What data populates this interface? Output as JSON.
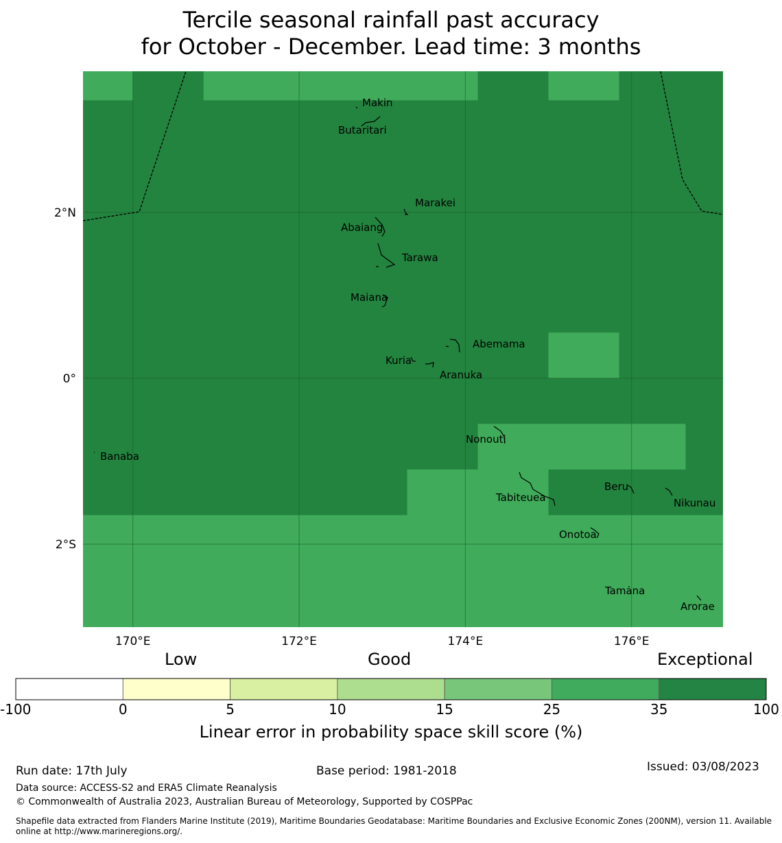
{
  "title_line1": "Tercile seasonal rainfall past accuracy",
  "title_line2": "for October - December. Lead time: 3 months",
  "map": {
    "lon_range": [
      169.4,
      177.1
    ],
    "lat_range": [
      -3.0,
      3.7
    ],
    "x_ticks": [
      {
        "lon": 170,
        "label": "170°E"
      },
      {
        "lon": 172,
        "label": "172°E"
      },
      {
        "lon": 174,
        "label": "174°E"
      },
      {
        "lon": 176,
        "label": "176°E"
      }
    ],
    "y_ticks": [
      {
        "lat": 2,
        "label": "2°N"
      },
      {
        "lat": 0,
        "label": "0°"
      },
      {
        "lat": -2,
        "label": "2°S"
      }
    ],
    "grid": true,
    "skill_colors": {
      "exceptional": "#23843f",
      "good_35": "#40ab5a"
    },
    "good_cells": [
      {
        "lon": [
          169.4,
          170.0
        ],
        "lat": [
          3.35,
          3.7
        ]
      },
      {
        "lon": [
          170.85,
          174.15
        ],
        "lat": [
          3.35,
          3.7
        ]
      },
      {
        "lon": [
          175.0,
          175.85
        ],
        "lat": [
          3.35,
          3.7
        ]
      },
      {
        "lon": [
          175.0,
          175.85
        ],
        "lat": [
          0.0,
          0.55
        ]
      },
      {
        "lon": [
          174.15,
          176.65
        ],
        "lat": [
          -1.1,
          -0.55
        ]
      },
      {
        "lon": [
          173.3,
          175.0
        ],
        "lat": [
          -1.65,
          -1.1
        ]
      },
      {
        "lon": [
          169.4,
          177.1
        ],
        "lat": [
          -3.0,
          -1.65
        ]
      }
    ],
    "islands": [
      {
        "name": "Makin",
        "lon": 173.0,
        "lat": 3.35
      },
      {
        "name": "Butaritari",
        "lon": 172.79,
        "lat": 3.02
      },
      {
        "name": "Marakei",
        "lon": 173.28,
        "lat": 2.0
      },
      {
        "name": "Abaiang",
        "lon": 172.93,
        "lat": 1.81
      },
      {
        "name": "Tarawa",
        "lon": 173.1,
        "lat": 1.45
      },
      {
        "name": "Maiana",
        "lon": 173.0,
        "lat": 0.97
      },
      {
        "name": "Abemama",
        "lon": 173.86,
        "lat": 0.37
      },
      {
        "name": "Kuria",
        "lon": 173.38,
        "lat": 0.22
      },
      {
        "name": "Aranuka",
        "lon": 173.63,
        "lat": 0.17
      },
      {
        "name": "Nonouti",
        "lon": 174.4,
        "lat": -0.68
      },
      {
        "name": "Banaba",
        "lon": 169.53,
        "lat": -0.88
      },
      {
        "name": "Tabiteuea",
        "lon": 174.9,
        "lat": -1.35
      },
      {
        "name": "Beru",
        "lon": 175.98,
        "lat": -1.33
      },
      {
        "name": "Nikunau",
        "lon": 176.45,
        "lat": -1.37
      },
      {
        "name": "Onotoa",
        "lon": 175.56,
        "lat": -1.81
      },
      {
        "name": "Tamana",
        "lon": 175.98,
        "lat": -2.52
      },
      {
        "name": "Arorae",
        "lon": 176.82,
        "lat": -2.66
      }
    ]
  },
  "colorbar": {
    "categories": [
      "Low",
      "Good",
      "Exceptional"
    ],
    "boundaries": [
      "-100",
      "0",
      "5",
      "10",
      "15",
      "25",
      "35",
      "100"
    ],
    "colors": [
      "#ffffff",
      "#ffffcc",
      "#d9f0a3",
      "#addd8e",
      "#78c679",
      "#41ab5d",
      "#238443"
    ],
    "label": "Linear error in probability space skill score (%)"
  },
  "footer": {
    "run_date": "Run date: 17th July",
    "base_period": "Base period: 1981-2018",
    "issued": "Issued: 03/08/2023",
    "data_source": "Data source: ACCESS-S2 and ERA5 Climate Reanalysis",
    "copyright": "© Commonwealth of Australia 2023, Australian Bureau of Meteorology, Supported by COSPPac",
    "shapefile_line1": "Shapefile data extracted from Flanders Marine Institute (2019), Maritime Boundaries Geodatabase: Maritime Boundaries and Exclusive Economic Zones (200NM), version 11. Available",
    "shapefile_line2": "online at http://www.marineregions.org/."
  }
}
